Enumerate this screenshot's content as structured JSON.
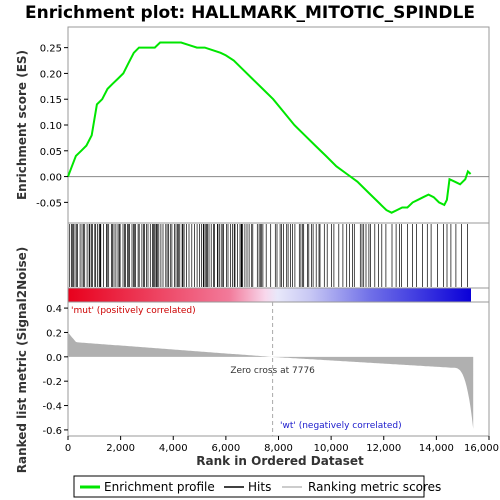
{
  "chart_data": {
    "type": "line",
    "title": "Enrichment plot: HALLMARK_MITOTIC_SPINDLE",
    "xlabel": "Rank in Ordered Dataset",
    "ylabel_top": "Enrichment score (ES)",
    "ylabel_bottom": "Ranked list metric (Signal2Noise)",
    "xlim": [
      0,
      16000
    ],
    "x_ticks": [
      0,
      2000,
      4000,
      6000,
      8000,
      10000,
      12000,
      14000,
      16000
    ],
    "x_tick_labels": [
      "0",
      "2,000",
      "4,000",
      "6,000",
      "8,000",
      "10,000",
      "12,000",
      "14,000",
      "16,000"
    ],
    "es_ylim": [
      -0.09,
      0.29
    ],
    "es_ticks": [
      -0.05,
      0.0,
      0.05,
      0.1,
      0.15,
      0.2,
      0.25
    ],
    "es_tick_labels": [
      "-0.05",
      "0.00",
      "0.05",
      "0.10",
      "0.15",
      "0.20",
      "0.25"
    ],
    "metric_ylim": [
      -0.65,
      0.45
    ],
    "metric_ticks": [
      -0.6,
      -0.4,
      -0.2,
      0.0,
      0.2,
      0.4
    ],
    "metric_tick_labels": [
      "-0.6",
      "-0.4",
      "-0.2",
      "0.0",
      "0.2",
      "0.4"
    ],
    "n_genes": 15400,
    "zero_cross": 7776,
    "zero_cross_label": "Zero cross at 7776",
    "pos_label": "'mut' (positively correlated)",
    "neg_label": "'wt' (negatively correlated)",
    "series": [
      {
        "name": "Enrichment profile",
        "color": "#00e600",
        "x": [
          0,
          150,
          300,
          500,
          700,
          900,
          1000,
          1100,
          1300,
          1500,
          1700,
          1900,
          2100,
          2300,
          2500,
          2700,
          2900,
          3100,
          3300,
          3500,
          3700,
          4000,
          4300,
          4600,
          4900,
          5200,
          5500,
          5800,
          6000,
          6300,
          6600,
          7000,
          7400,
          7800,
          8200,
          8600,
          9000,
          9400,
          9800,
          10200,
          10600,
          11000,
          11400,
          11800,
          12100,
          12300,
          12500,
          12700,
          12900,
          13100,
          13300,
          13500,
          13700,
          13900,
          14100,
          14300,
          14400,
          14500,
          14700,
          14900,
          15100,
          15200,
          15300
        ],
        "values": [
          0.0,
          0.02,
          0.04,
          0.05,
          0.06,
          0.08,
          0.11,
          0.14,
          0.15,
          0.17,
          0.18,
          0.19,
          0.2,
          0.22,
          0.24,
          0.25,
          0.25,
          0.25,
          0.25,
          0.26,
          0.26,
          0.26,
          0.26,
          0.255,
          0.25,
          0.25,
          0.245,
          0.24,
          0.235,
          0.225,
          0.21,
          0.19,
          0.17,
          0.15,
          0.125,
          0.1,
          0.08,
          0.06,
          0.04,
          0.02,
          0.005,
          -0.01,
          -0.03,
          -0.05,
          -0.065,
          -0.07,
          -0.065,
          -0.06,
          -0.06,
          -0.05,
          -0.045,
          -0.04,
          -0.035,
          -0.04,
          -0.05,
          -0.055,
          -0.045,
          -0.005,
          -0.01,
          -0.015,
          -0.005,
          0.01,
          0.005
        ]
      }
    ],
    "legend": [
      {
        "label": "Enrichment profile",
        "color": "#00e600"
      },
      {
        "label": "Hits",
        "color": "#000000"
      },
      {
        "label": "Ranking metric scores",
        "color": "#bbbbbb"
      }
    ],
    "colors": {
      "positive": "#e8001c",
      "negative": "#0a00d8",
      "pos_label": "#cc0000",
      "neg_label": "#1a1acc",
      "metric_fill": "#b0b0b0"
    }
  }
}
